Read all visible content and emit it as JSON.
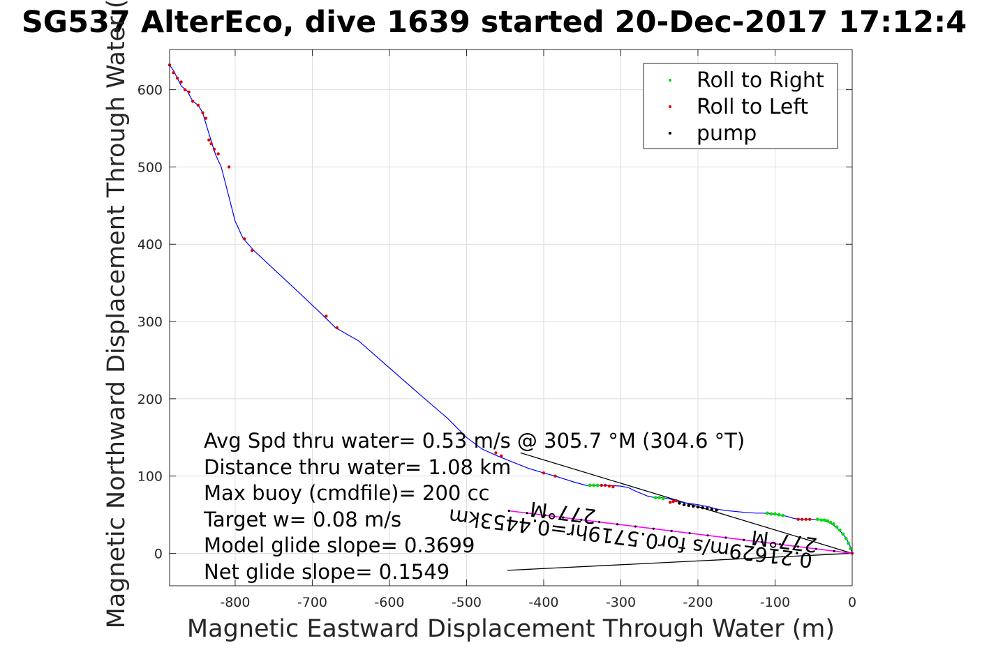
{
  "chart_data": {
    "type": "line",
    "title": "SG537 AlterEco, dive 1639 started 20-Dec-2017 17:12:4",
    "xlabel": "Magnetic Eastward Displacement Through Water (m)",
    "ylabel": "Magnetic Northward Displacement Through Water (",
    "xlim": [
      -885,
      0
    ],
    "ylim": [
      -42,
      652
    ],
    "xticks": [
      -800,
      -700,
      -600,
      -500,
      -400,
      -300,
      -200,
      -100,
      0
    ],
    "yticks": [
      0,
      100,
      200,
      300,
      400,
      500,
      600
    ],
    "grid": true,
    "legend": {
      "position": "top-right",
      "entries": [
        {
          "label": "Roll to Right",
          "color": "#00dd00"
        },
        {
          "label": "Roll to Left",
          "color": "#dd0000"
        },
        {
          "label": "pump",
          "color": "#000000"
        }
      ]
    },
    "track": {
      "color": "#0000ff",
      "x": [
        0,
        -3,
        -8,
        -15,
        -22,
        -30,
        -40,
        -50,
        -58,
        -65,
        -75,
        -85,
        -95,
        -105,
        -115,
        -125,
        -140,
        -160,
        -175,
        -185,
        -200,
        -215,
        -225,
        -235,
        -245,
        -255,
        -265,
        -280,
        -290,
        -300,
        -315,
        -330,
        -345,
        -360,
        -385,
        -400,
        -420,
        -440,
        -460,
        -480,
        -500,
        -525,
        -560,
        -600,
        -640,
        -670,
        -685,
        -720,
        -776,
        -790,
        -800,
        -818,
        -825,
        -830,
        -840,
        -842,
        -848,
        -855,
        -862,
        -870,
        -875,
        -880,
        -885
      ],
      "y": [
        0,
        10,
        20,
        28,
        35,
        40,
        43,
        44,
        44,
        44,
        45,
        48,
        50,
        51,
        52,
        52,
        53,
        55,
        57,
        60,
        63,
        65,
        67,
        70,
        72,
        72,
        74,
        80,
        85,
        87,
        88,
        88,
        88,
        92,
        100,
        104,
        110,
        118,
        126,
        135,
        150,
        175,
        205,
        240,
        275,
        292,
        307,
        340,
        392,
        408,
        430,
        500,
        515,
        530,
        563,
        570,
        580,
        585,
        598,
        605,
        615,
        625,
        632
      ]
    },
    "roll_right": {
      "color": "#00dd00",
      "x": [
        -2,
        -5,
        -8,
        -12,
        -16,
        -20,
        -24,
        -28,
        -32,
        -36,
        -40,
        -45,
        -90,
        -95,
        -100,
        -105,
        -110,
        -245,
        -250,
        -255,
        -330,
        -335,
        -340
      ],
      "y": [
        6,
        13,
        19,
        25,
        30,
        34,
        38,
        40,
        42,
        43,
        43,
        44,
        49,
        50,
        51,
        51,
        52,
        71,
        72,
        72,
        88,
        88,
        88
      ]
    },
    "roll_left": {
      "color": "#dd0000",
      "x": [
        -55,
        -60,
        -65,
        -70,
        -228,
        -232,
        -236,
        -310,
        -315,
        -320,
        -325,
        -385,
        -400,
        -455,
        -462,
        -668,
        -682,
        -778,
        -788,
        -808,
        -822,
        -827,
        -831,
        -834,
        -838,
        -842,
        -848,
        -855,
        -860,
        -865,
        -870,
        -875,
        -880,
        -885,
        -224,
        -218,
        -212,
        -206,
        -200,
        -194,
        -188,
        -182,
        -176,
        0
      ],
      "y": [
        44,
        44,
        44,
        44,
        68,
        67,
        66,
        86,
        87,
        88,
        88,
        100,
        104,
        126,
        130,
        292,
        307,
        392,
        407,
        500,
        517,
        523,
        530,
        535,
        563,
        570,
        580,
        585,
        597,
        600,
        610,
        615,
        622,
        632,
        65,
        63,
        62,
        61,
        60,
        59,
        58,
        57,
        56,
        0
      ]
    },
    "pump": {
      "color": "#000000",
      "x": [
        -224,
        -218,
        -212,
        -206,
        -200,
        -194,
        -188,
        -182,
        -176
      ],
      "y": [
        65,
        63,
        62,
        61,
        60,
        59,
        58,
        57,
        56
      ]
    },
    "magenta_line": {
      "color": "#ff00ff",
      "x": [
        0,
        -445
      ],
      "y": [
        0,
        55
      ]
    },
    "reference_lines": [
      {
        "x": [
          0,
          -430
        ],
        "y": [
          0,
          130
        ]
      },
      {
        "x": [
          0,
          -447
        ],
        "y": [
          0,
          -22
        ]
      }
    ],
    "annotations": [
      "Avg Spd thru water=  0.53 m/s @ 305.7 °M (304.6 °T)",
      "Distance thru water=  1.08 km",
      "Max buoy (cmdfile)= 200 cc",
      "Target w= 0.08 m/s",
      "Model glide slope= 0.3699",
      "Net glide slope= 0.1549"
    ],
    "rotated_annotations": [
      "0.21629m/s for0.5719hr=0.4453km",
      "277°M",
      "277°M"
    ]
  }
}
